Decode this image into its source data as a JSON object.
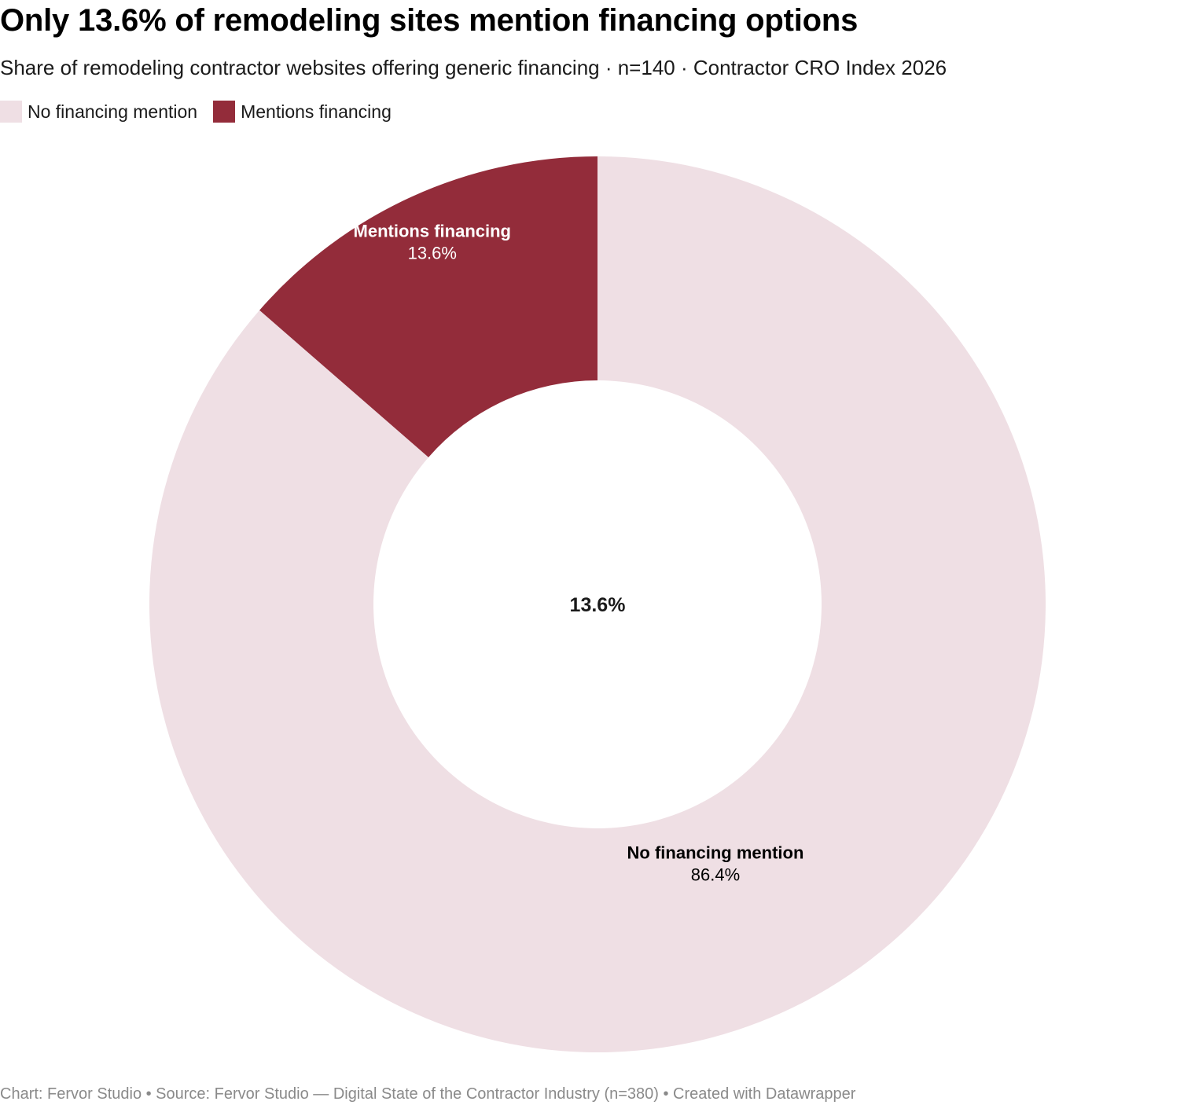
{
  "chart_data": {
    "type": "pie",
    "title": "Only 13.6% of remodeling sites mention financing options",
    "subtitle": "Share of remodeling contractor websites offering generic financing · n=140 · Contractor CRO Index 2026",
    "donut": true,
    "center_label": "13.6%",
    "legend_placement": "top-left",
    "slices": [
      {
        "label": "No financing mention",
        "value": 86.4,
        "value_label": "86.4%",
        "color": "#efdfe4",
        "text_color": "#000000"
      },
      {
        "label": "Mentions financing",
        "value": 13.6,
        "value_label": "13.6%",
        "color": "#932c3a",
        "text_color": "#ffffff"
      }
    ]
  },
  "legend": [
    {
      "label": "No financing mention",
      "color": "#efdfe4"
    },
    {
      "label": "Mentions financing",
      "color": "#932c3a"
    }
  ],
  "footer": "Chart: Fervor Studio • Source: Fervor Studio — Digital State of the Contractor Industry (n=380) • Created with Datawrapper"
}
